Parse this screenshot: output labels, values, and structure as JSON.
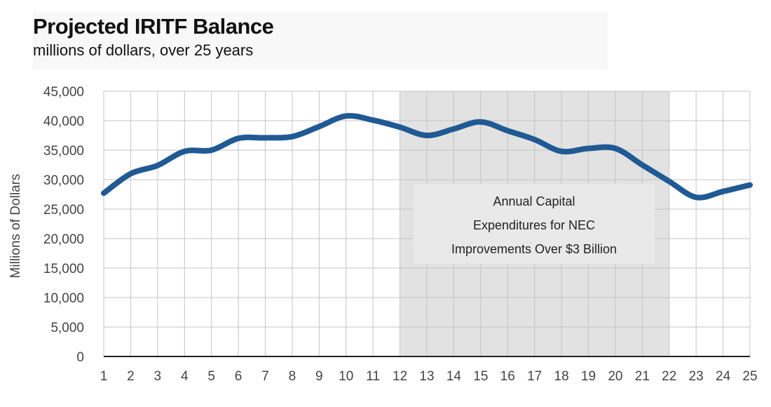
{
  "chart_data": {
    "type": "line",
    "title": "Projected IRITF Balance",
    "subtitle": "millions of dollars, over 25 years",
    "xlabel": "",
    "ylabel": "Millions of Dollars",
    "ylim": [
      0,
      45000
    ],
    "y_ticks": [
      "0",
      "5,000",
      "10,000",
      "15,000",
      "20,000",
      "25,000",
      "30,000",
      "35,000",
      "40,000",
      "45,000"
    ],
    "y_tick_values": [
      0,
      5000,
      10000,
      15000,
      20000,
      25000,
      30000,
      35000,
      40000,
      45000
    ],
    "x": [
      1,
      2,
      3,
      4,
      5,
      6,
      7,
      8,
      9,
      10,
      11,
      12,
      13,
      14,
      15,
      16,
      17,
      18,
      19,
      20,
      21,
      22,
      23,
      24,
      25
    ],
    "x_tick_labels": [
      "1",
      "2",
      "3",
      "4",
      "5",
      "6",
      "7",
      "8",
      "9",
      "10",
      "11",
      "12",
      "13",
      "14",
      "15",
      "16",
      "17",
      "18",
      "19",
      "20",
      "21",
      "22",
      "23",
      "24",
      "25"
    ],
    "series": [
      {
        "values": [
          27700,
          31000,
          32400,
          34800,
          35000,
          37000,
          37100,
          37300,
          39000,
          40800,
          40100,
          38900,
          37500,
          38600,
          39800,
          38300,
          36800,
          34800,
          35300,
          35300,
          32500,
          29700,
          27000,
          28000,
          29100
        ],
        "color": "#205a94"
      }
    ],
    "shaded_region": {
      "x_start": 12,
      "x_end": 22,
      "color": "#e2e2e2"
    },
    "annotation": {
      "lines": [
        "Annual Capital",
        "Expenditures for NEC",
        "Improvements Over $3 Billion"
      ]
    },
    "grid": true,
    "legend": "none"
  }
}
